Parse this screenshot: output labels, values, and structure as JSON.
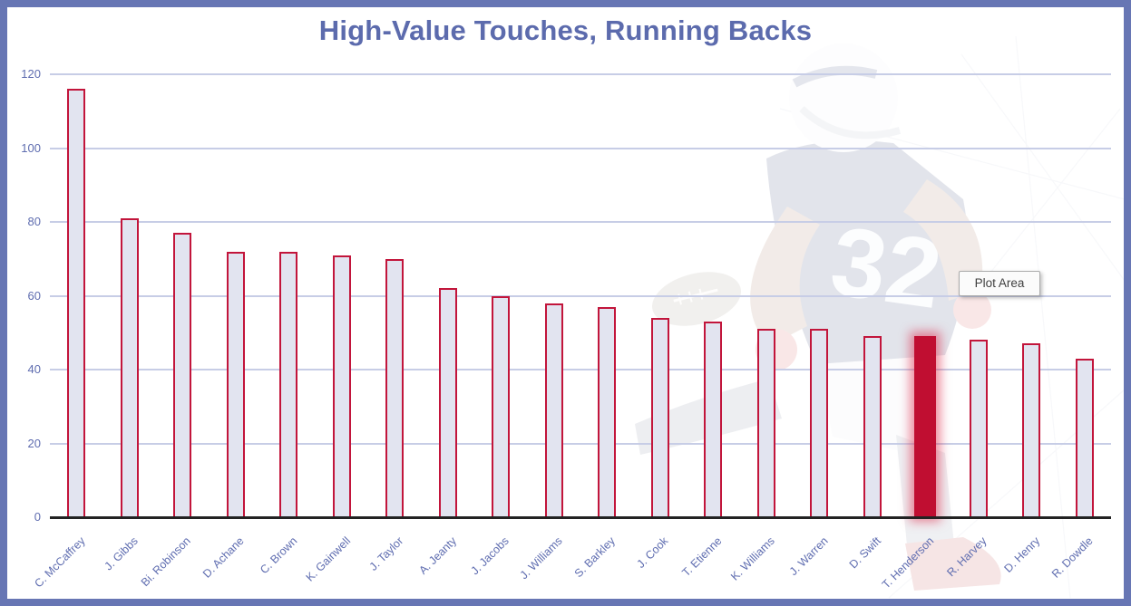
{
  "title": "High-Value Touches, Running Backs",
  "tooltip": {
    "label": "Plot Area"
  },
  "background_image": {
    "description": "faded-football-player-navy-jersey-with-football",
    "jersey_number": "32"
  },
  "colors": {
    "frame_border": "#6776B4",
    "title_text": "#5C6BAD",
    "axis_label": "#5F6DB0",
    "gridline": "#C7CDE6",
    "bar_fill": "#E2E4F0",
    "bar_stroke": "#C2153B",
    "highlight_fill": "#C00E31",
    "baseline": "#222222"
  },
  "chart_data": {
    "type": "bar",
    "title": "High-Value Touches, Running Backs",
    "xlabel": "",
    "ylabel": "",
    "ylim": [
      0,
      120
    ],
    "yticks": [
      0,
      20,
      40,
      60,
      80,
      100,
      120
    ],
    "grid": true,
    "legend": "none",
    "categories": [
      "C. McCaffrey",
      "J. Gibbs",
      "Bi. Robinson",
      "D. Achane",
      "C. Brown",
      "K. Gainwell",
      "J. Taylor",
      "A. Jeanty",
      "J. Jacobs",
      "J. Williams",
      "S. Barkley",
      "J. Cook",
      "T. Etienne",
      "K. Williams",
      "J. Warren",
      "D. Swift",
      "T. Henderson",
      "R. Harvey",
      "D. Henry",
      "R. Dowdle"
    ],
    "values": [
      116,
      81,
      77,
      72,
      72,
      71,
      70,
      62,
      60,
      58,
      57,
      54,
      53,
      51,
      51,
      49,
      49,
      48,
      47,
      43
    ],
    "highlighted_category": "T. Henderson"
  }
}
